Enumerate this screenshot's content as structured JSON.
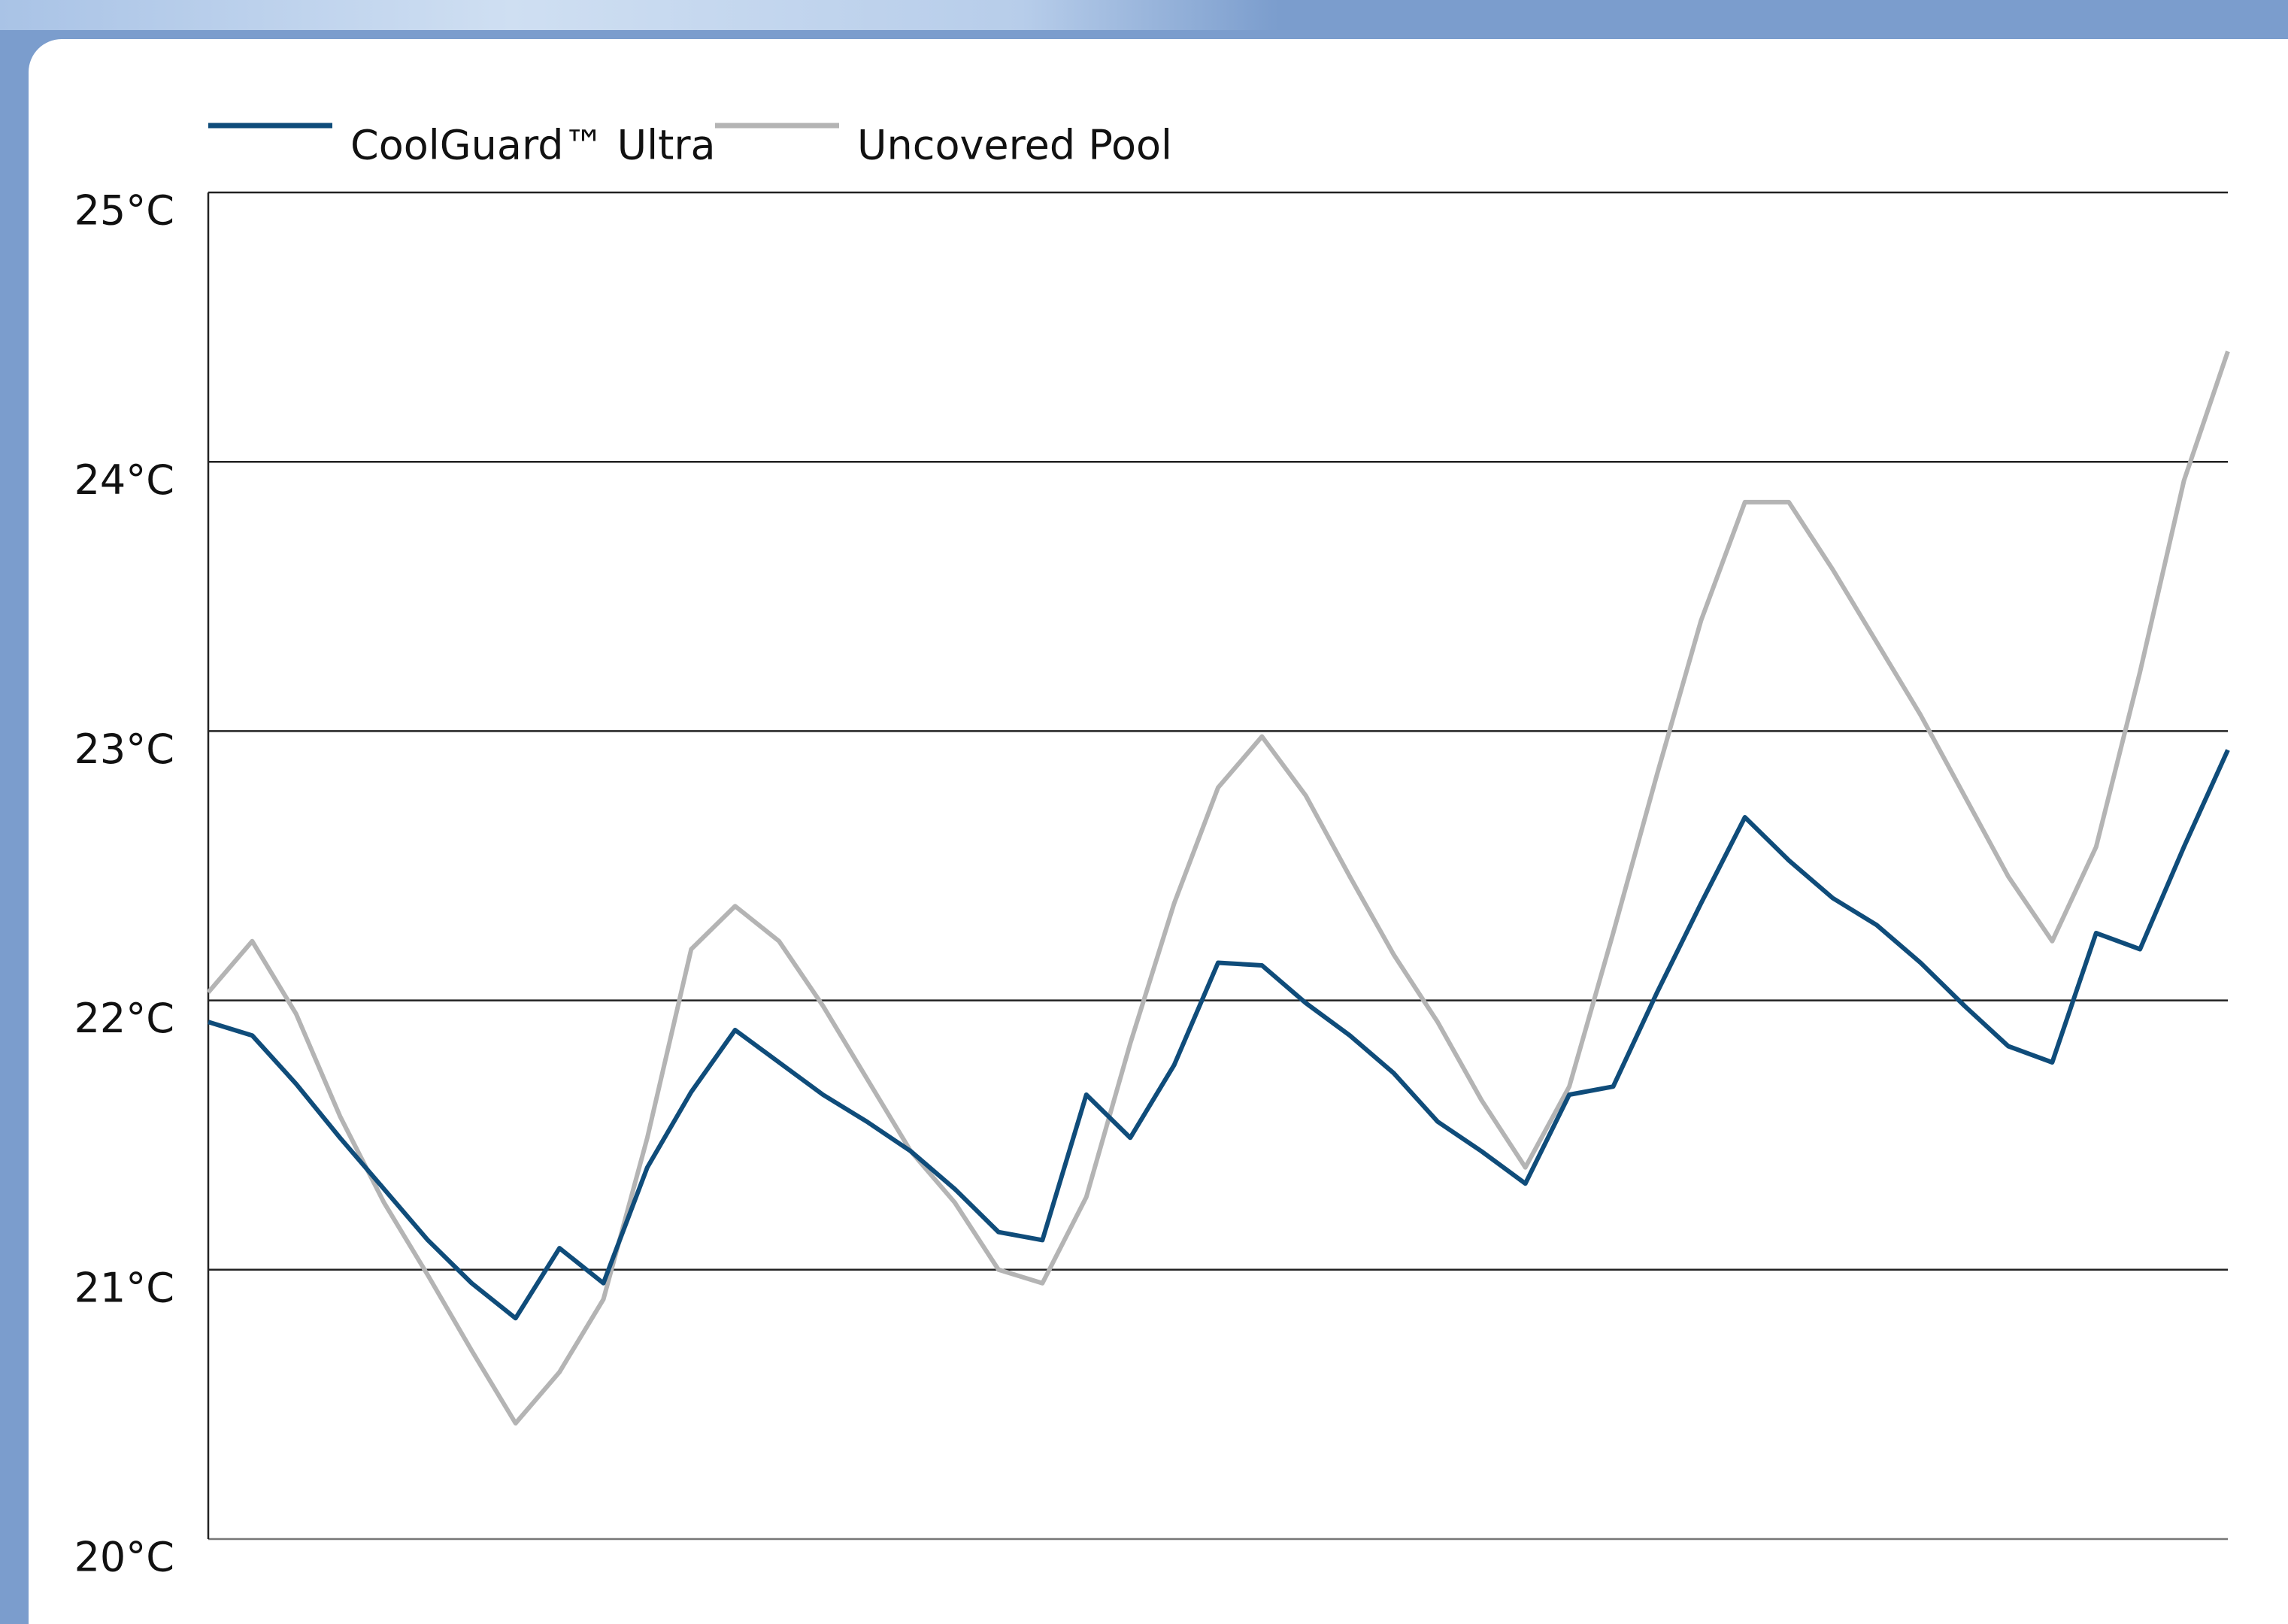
{
  "chart_data": {
    "type": "line",
    "categories": [
      null,
      null,
      null,
      null,
      null,
      null,
      null,
      null,
      null,
      null,
      null,
      null,
      null,
      null,
      null,
      null,
      null,
      null,
      null,
      null,
      null,
      null,
      null,
      null,
      null,
      null,
      null,
      null,
      null,
      null,
      null,
      null,
      null,
      null,
      null,
      null,
      null,
      null,
      null,
      null,
      null,
      null,
      null,
      null,
      null,
      null,
      null
    ],
    "series": [
      {
        "name": "CoolGuard™ Ultra",
        "color": "#0f4c7a",
        "values": [
          21.92,
          21.87,
          21.69,
          21.49,
          21.3,
          21.11,
          20.95,
          20.82,
          21.08,
          20.95,
          21.38,
          21.66,
          21.89,
          21.77,
          21.65,
          21.55,
          21.44,
          21.3,
          21.14,
          21.11,
          21.65,
          21.49,
          21.76,
          22.14,
          22.13,
          21.99,
          21.87,
          21.73,
          21.55,
          21.44,
          21.32,
          21.65,
          21.68,
          22.03,
          22.36,
          22.68,
          22.52,
          22.38,
          22.28,
          22.14,
          21.98,
          21.83,
          21.77,
          22.25,
          22.19,
          22.57,
          22.93
        ]
      },
      {
        "name": "Uncovered Pool",
        "color": "#b4b4b4",
        "values": [
          22.03,
          22.22,
          21.95,
          21.57,
          21.25,
          20.98,
          20.7,
          20.43,
          20.62,
          20.89,
          21.49,
          22.19,
          22.35,
          22.22,
          21.98,
          21.71,
          21.44,
          21.25,
          21.0,
          20.95,
          21.27,
          21.84,
          22.36,
          22.79,
          22.98,
          22.76,
          22.46,
          22.17,
          21.92,
          21.63,
          21.38,
          21.68,
          22.25,
          22.84,
          23.41,
          23.85,
          23.85,
          23.6,
          23.33,
          23.06,
          22.76,
          22.46,
          22.22,
          22.57,
          23.22,
          23.93,
          24.41
        ]
      }
    ],
    "ylim": [
      20,
      25
    ],
    "yticks": [
      {
        "value": 20,
        "label": "20°C"
      },
      {
        "value": 21,
        "label": "21°C"
      },
      {
        "value": 22,
        "label": "22°C"
      },
      {
        "value": 23,
        "label": "23°C"
      },
      {
        "value": 24,
        "label": "24°C"
      },
      {
        "value": 25,
        "label": "25°C"
      }
    ],
    "grid": true
  }
}
